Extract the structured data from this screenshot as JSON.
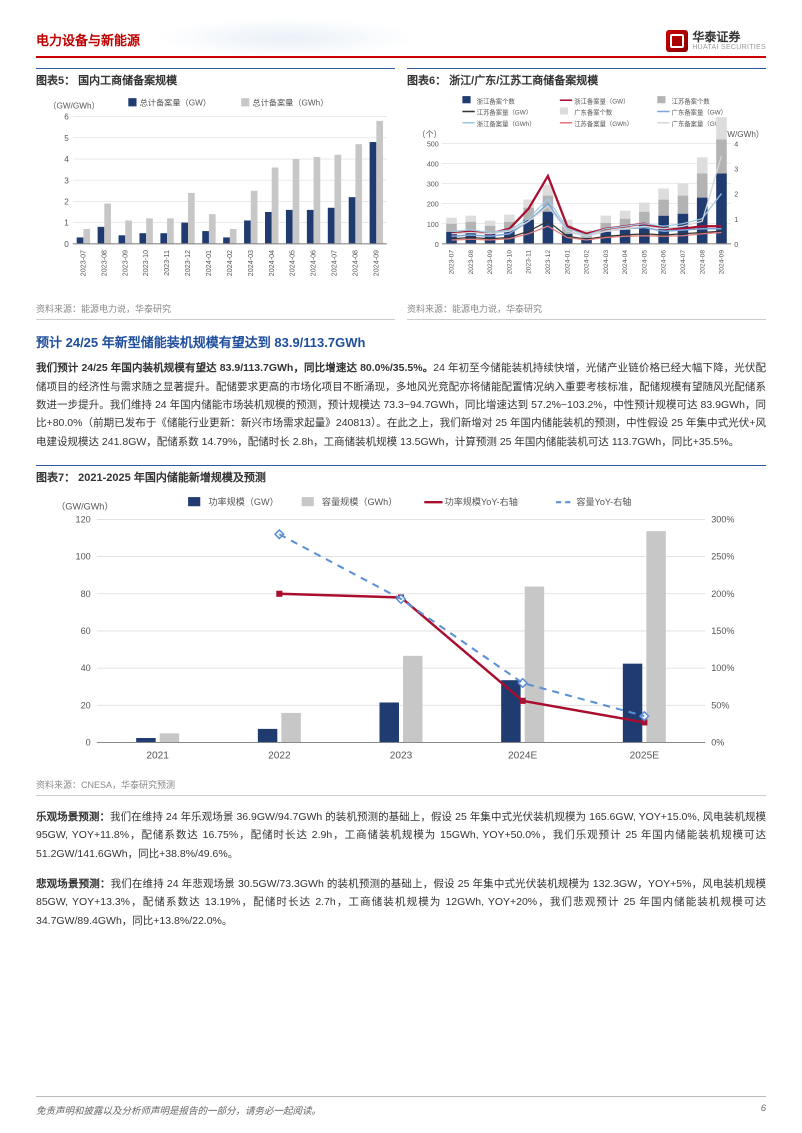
{
  "header": {
    "category": "电力设备与新能源",
    "logo_cn": "华泰证券",
    "logo_en": "HUATAI SECURITIES"
  },
  "chart5": {
    "title": "图表5：  国内工商储备案规模",
    "type": "bar",
    "y_label": "（GW/GWh）",
    "y_ticks": [
      0,
      1,
      2,
      3,
      4,
      5,
      6
    ],
    "ylim": [
      0,
      6
    ],
    "categories": [
      "2023-07",
      "2023-08",
      "2023-09",
      "2023-10",
      "2023-11",
      "2023-12",
      "2024-01",
      "2024-02",
      "2024-03",
      "2024-04",
      "2024-05",
      "2024-06",
      "2024-07",
      "2024-08",
      "2024-09"
    ],
    "series": [
      {
        "name": "总计备案量（GW）",
        "color": "#1f3b70",
        "values": [
          0.3,
          0.8,
          0.4,
          0.5,
          0.5,
          1.0,
          0.6,
          0.3,
          1.1,
          1.5,
          1.6,
          1.6,
          1.7,
          2.2,
          4.8
        ]
      },
      {
        "name": "总计备案量（GWh）",
        "color": "#c7c7c7",
        "values": [
          0.7,
          1.9,
          1.1,
          1.2,
          1.2,
          2.4,
          1.4,
          0.7,
          2.5,
          3.6,
          4.0,
          4.1,
          4.2,
          4.7,
          5.8
        ]
      }
    ],
    "legend_marker_dark": "#1f3b70",
    "legend_marker_light": "#c7c7c7",
    "grid_color": "#dddddd",
    "axis_color": "#888888",
    "tick_fontsize": 8,
    "source": "资料来源：能源电力说，华泰研究"
  },
  "chart6": {
    "title": "图表6：  浙江/广东/江苏工商储备案规模",
    "type": "bar-line-dual",
    "y_left_label": "（个）",
    "y_right_label": "（GW/GWh）",
    "y_left_ticks": [
      0,
      100,
      200,
      300,
      400,
      500
    ],
    "y_right_ticks": [
      0,
      1,
      2,
      3,
      4
    ],
    "categories": [
      "2023-07",
      "2023-08",
      "2023-09",
      "2023-10",
      "2023-11",
      "2023-12",
      "2024-01",
      "2024-02",
      "2024-03",
      "2024-04",
      "2024-05",
      "2024-06",
      "2024-07",
      "2024-08",
      "2024-09"
    ],
    "bars": [
      {
        "name": "浙江备案个数",
        "color": "#1f3b70",
        "values": [
          60,
          65,
          55,
          70,
          120,
          160,
          50,
          30,
          60,
          70,
          100,
          140,
          150,
          230,
          350
        ]
      },
      {
        "name": "江苏备案个数",
        "color": "#b3b3b3",
        "values": [
          40,
          45,
          35,
          40,
          60,
          80,
          40,
          20,
          45,
          55,
          60,
          80,
          90,
          120,
          170
        ]
      },
      {
        "name": "广东备案个数",
        "color": "#dddddd",
        "values": [
          30,
          30,
          25,
          35,
          40,
          55,
          30,
          18,
          35,
          40,
          45,
          55,
          60,
          80,
          110
        ]
      }
    ],
    "lines": [
      {
        "name": "浙江备案量（GW）",
        "color": "#a90e2e",
        "dash": false,
        "width": 2.2,
        "values": [
          0.4,
          0.5,
          0.4,
          0.6,
          1.4,
          2.7,
          0.7,
          0.4,
          0.6,
          0.7,
          0.8,
          0.6,
          0.6,
          0.7,
          0.7
        ]
      },
      {
        "name": "浙江备案量（GWh）",
        "color": "#7fa6d9",
        "dash": false,
        "width": 1.5,
        "values": [
          0.3,
          0.35,
          0.3,
          0.4,
          0.9,
          1.6,
          0.5,
          0.3,
          0.5,
          0.6,
          0.65,
          0.5,
          0.55,
          0.6,
          0.6
        ]
      },
      {
        "name": "江苏备案量（GW）",
        "color": "#333333",
        "dash": false,
        "width": 1.2,
        "values": [
          0.2,
          0.25,
          0.2,
          0.25,
          0.5,
          0.9,
          0.3,
          0.18,
          0.3,
          0.35,
          0.4,
          0.35,
          0.4,
          0.45,
          0.5
        ]
      },
      {
        "name": "江苏备案量（GWh）",
        "color": "#9ec9e2",
        "dash": false,
        "width": 1.2,
        "values": [
          0.5,
          0.55,
          0.45,
          0.55,
          1.0,
          1.8,
          0.6,
          0.35,
          0.6,
          0.7,
          0.8,
          0.7,
          0.8,
          1.0,
          2.0
        ]
      },
      {
        "name": "广东备案量（GW）",
        "color": "#e07b7b",
        "dash": false,
        "width": 1.2,
        "values": [
          0.15,
          0.18,
          0.15,
          0.2,
          0.4,
          0.7,
          0.25,
          0.15,
          0.25,
          0.3,
          0.32,
          0.3,
          0.32,
          0.4,
          0.45
        ]
      },
      {
        "name": "广东备案量（GWh）",
        "color": "#d6d6d6",
        "dash": false,
        "width": 1.2,
        "values": [
          0.4,
          0.45,
          0.4,
          0.5,
          0.9,
          1.5,
          0.5,
          0.3,
          0.5,
          0.6,
          0.7,
          0.6,
          0.7,
          0.9,
          3.5
        ]
      }
    ],
    "legend_items": [
      {
        "label": "浙江备案个数",
        "color": "#1f3b70",
        "type": "bar"
      },
      {
        "label": "浙江备案量（GW）",
        "color": "#a90e2e",
        "type": "line"
      },
      {
        "label": "江苏备案个数",
        "color": "#b3b3b3",
        "type": "bar"
      },
      {
        "label": "江苏备案量（GW）",
        "color": "#333333",
        "type": "line"
      },
      {
        "label": "广东备案个数",
        "color": "#dddddd",
        "type": "bar"
      },
      {
        "label": "广东备案量（GW）",
        "color": "#7fa6d9",
        "type": "line"
      },
      {
        "label": "浙江备案量（GWh）",
        "color": "#9ec9e2",
        "type": "line"
      },
      {
        "label": "江苏备案量（GWh）",
        "color": "#e07b7b",
        "type": "line"
      },
      {
        "label": "广东备案量（GWh）",
        "color": "#d6d6d6",
        "type": "line"
      }
    ],
    "grid_color": "#dddddd",
    "axis_color": "#888888",
    "source": "资料来源：能源电力说，华泰研究"
  },
  "section1": {
    "heading": "预计 24/25 年新型储能装机规模有望达到 83.9/113.7GWh",
    "para": "我们预计 24/25 年国内装机规模有望达 83.9/113.7GWh，同比增速达 80.0%/35.5%。24 年初至今储能装机持续快增，光储产业链价格已经大幅下降，光伏配储项目的经济性与需求随之显著提升。配储要求更高的市场化项目不断涌现，多地风光竞配亦将储能配置情况纳入重要考核标准，配储规模有望随风光配储系数进一步提升。我们维持 24 年国内储能市场装机规模的预测，预计规模达 73.3~94.7GWh，同比增速达到 57.2%~103.2%，中性预计规模可达 83.9GWh，同比+80.0%（前期已发布于《储能行业更新：新兴市场需求起量》240813）。在此之上，我们新增对 25 年国内储能装机的预测，中性假设 25 年集中式光伏+风电建设规模达 241.8GW，配储系数 14.79%，配储时长 2.8h，工商储装机规模 13.5GWh，计算预测 25 年国内储能装机可达 113.7GWh，同比+35.5%。"
  },
  "chart7": {
    "title": "图表7：  2021-2025 年国内储能新增规模及预测",
    "type": "bar-line-dual",
    "y_left_label": "（GW/GWh）",
    "y_left_ticks": [
      0,
      20,
      40,
      60,
      80,
      100,
      120
    ],
    "y_left_lim": [
      0,
      120
    ],
    "y_right_ticks": [
      "0%",
      "50%",
      "100%",
      "150%",
      "200%",
      "250%",
      "300%"
    ],
    "y_right_lim": [
      0,
      300
    ],
    "categories": [
      "2021",
      "2022",
      "2023",
      "2024E",
      "2025E"
    ],
    "bars": [
      {
        "name": "功率规模（GW）",
        "color": "#1f3b70",
        "values": [
          2.4,
          7.3,
          21.5,
          33.5,
          42.4
        ]
      },
      {
        "name": "容量规模（GWh）",
        "color": "#c7c7c7",
        "values": [
          4.9,
          15.9,
          46.6,
          83.9,
          113.7
        ]
      }
    ],
    "lines": [
      {
        "name": "功率规模YoY-右轴",
        "color": "#a90e2e",
        "dash": false,
        "width": 2.4,
        "values": [
          null,
          200,
          195,
          56,
          27
        ]
      },
      {
        "name": "容量YoY-右轴",
        "color": "#5a8fd6",
        "dash": true,
        "width": 2.0,
        "values": [
          null,
          280,
          193,
          80,
          35.5
        ]
      }
    ],
    "legend": [
      {
        "label": "功率规模（GW）",
        "color": "#1f3b70",
        "type": "bar"
      },
      {
        "label": "容量规模（GWh）",
        "color": "#c7c7c7",
        "type": "bar"
      },
      {
        "label": "功率规模YoY-右轴",
        "color": "#a90e2e",
        "type": "line"
      },
      {
        "label": "容量YoY-右轴",
        "color": "#5a8fd6",
        "type": "dash"
      }
    ],
    "grid_color": "#dddddd",
    "axis_color": "#888888",
    "source": "资料来源：CNESA，华泰研究预测"
  },
  "section2": {
    "p1_lead": "乐观场景预测：",
    "p1": "我们在维持 24 年乐观场景 36.9GW/94.7GWh 的装机预测的基础上，假设 25 年集中式光伏装机规模为 165.6GW, YOY+15.0%, 风电装机规模 95GW, YOY+11.8%，配储系数达 16.75%，配储时长达 2.9h，工商储装机规模为 15GWh, YOY+50.0%，我们乐观预计 25 年国内储能装机规模可达 51.2GW/141.6GWh，同比+38.8%/49.6%。",
    "p2_lead": "悲观场景预测：",
    "p2": "我们在维持 24 年悲观场景 30.5GW/73.3GWh 的装机预测的基础上，假设 25 年集中式光伏装机规模为 132.3GW，YOY+5%，风电装机规模 85GW, YOY+13.3%，配储系数达 13.19%，配储时长达 2.7h，工商储装机规模为 12GWh, YOY+20%，我们悲观预计 25 年国内储能装机规模可达 34.7GW/89.4GWh，同比+13.8%/22.0%。"
  },
  "footer": {
    "disclaimer": "免责声明和披露以及分析师声明是报告的一部分，请务必一起阅读。",
    "page": "6"
  }
}
